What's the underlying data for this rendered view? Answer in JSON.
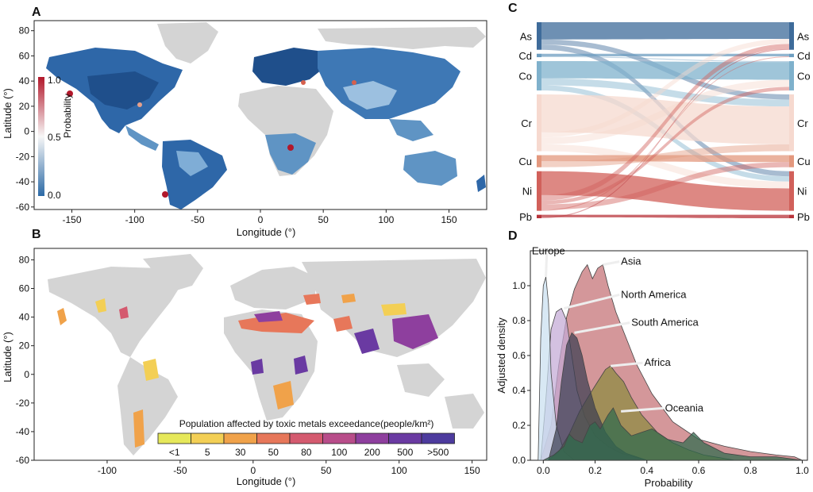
{
  "chart_data": [
    {
      "panel": "A",
      "type": "heatmap",
      "xlabel": "Longitude (°)",
      "ylabel": "Latitude (°)",
      "xticks": [
        "-150",
        "-100",
        "-50",
        "0",
        "50",
        "100",
        "150"
      ],
      "xtick_values": [
        -150,
        -100,
        -50,
        0,
        50,
        100,
        150
      ],
      "yticks": [
        "80",
        "60",
        "40",
        "20",
        "0",
        "-20",
        "-40",
        "-60"
      ],
      "ytick_values": [
        80,
        60,
        40,
        20,
        0,
        -20,
        -40,
        -60
      ],
      "xlim": [
        -180,
        180
      ],
      "ylim": [
        -62,
        88
      ],
      "colorbar": {
        "label": "Probability",
        "min_label": "0.0",
        "mid_label": "0.5",
        "max_label": "1.0",
        "colors": [
          "#2c6aa6",
          "#f7f7f7",
          "#b2182b"
        ]
      }
    },
    {
      "panel": "B",
      "type": "heatmap",
      "xlabel": "Longitude (°)",
      "ylabel": "Latitude (°)",
      "xticks": [
        "-100",
        "-50",
        "0",
        "50",
        "100",
        "150"
      ],
      "xtick_values": [
        -100,
        -50,
        0,
        50,
        100,
        150
      ],
      "yticks": [
        "80",
        "60",
        "40",
        "20",
        "0",
        "-20",
        "-40",
        "-60"
      ],
      "ytick_values": [
        80,
        60,
        40,
        20,
        0,
        -20,
        -40,
        -60
      ],
      "xlim": [
        -150,
        160
      ],
      "ylim": [
        -60,
        88
      ],
      "legend_title": "Population affected by toxic metals exceedance(people/km²)",
      "legend_labels": [
        "<1",
        "5",
        "30",
        "50",
        "80",
        "100",
        "200",
        "500",
        ">500"
      ],
      "legend_colors": [
        "#e6e85a",
        "#f3cf55",
        "#f0a24a",
        "#e7775a",
        "#d45a6f",
        "#b84d8a",
        "#8e3f9e",
        "#6a3aa2",
        "#4d3b9e"
      ]
    },
    {
      "panel": "C",
      "type": "sankey",
      "left_nodes": [
        "As",
        "Cd",
        "Co",
        "Cr",
        "Cu",
        "Ni",
        "Pb"
      ],
      "right_nodes": [
        "As",
        "Cd",
        "Co",
        "Cr",
        "Cu",
        "Ni",
        "Pb"
      ],
      "node_values": [
        0.16,
        0.02,
        0.17,
        0.33,
        0.07,
        0.23,
        0.02
      ],
      "node_colors": [
        "#3e6b9a",
        "#6d9ec0",
        "#7fb1cc",
        "#f6d9cf",
        "#e3987e",
        "#d1605a",
        "#b8333a"
      ],
      "flows": [
        {
          "from": "As",
          "to": "As",
          "value": 0.1
        },
        {
          "from": "As",
          "to": "Cr",
          "value": 0.03
        },
        {
          "from": "As",
          "to": "Ni",
          "value": 0.03
        },
        {
          "from": "Cd",
          "to": "Cd",
          "value": 0.015
        },
        {
          "from": "Cd",
          "to": "Co",
          "value": 0.005
        },
        {
          "from": "Co",
          "to": "Co",
          "value": 0.1
        },
        {
          "from": "Co",
          "to": "Cr",
          "value": 0.04
        },
        {
          "from": "Co",
          "to": "Ni",
          "value": 0.03
        },
        {
          "from": "Cr",
          "to": "Cr",
          "value": 0.22
        },
        {
          "from": "Cr",
          "to": "As",
          "value": 0.03
        },
        {
          "from": "Cr",
          "to": "Co",
          "value": 0.04
        },
        {
          "from": "Cr",
          "to": "Ni",
          "value": 0.04
        },
        {
          "from": "Cu",
          "to": "Cu",
          "value": 0.04
        },
        {
          "from": "Cu",
          "to": "Cr",
          "value": 0.04
        },
        {
          "from": "Ni",
          "to": "Ni",
          "value": 0.13
        },
        {
          "from": "Ni",
          "to": "As",
          "value": 0.03
        },
        {
          "from": "Ni",
          "to": "Co",
          "value": 0.02
        },
        {
          "from": "Ni",
          "to": "Cu",
          "value": 0.03
        },
        {
          "from": "Ni",
          "to": "Cd",
          "value": 0.005
        },
        {
          "from": "Pb",
          "to": "Pb",
          "value": 0.012
        },
        {
          "from": "Pb",
          "to": "As",
          "value": 0.005
        }
      ]
    },
    {
      "panel": "D",
      "type": "area",
      "xlabel": "Probability",
      "ylabel": "Adjusted density",
      "xlim": [
        -0.05,
        1.02
      ],
      "ylim": [
        0,
        1.2
      ],
      "xticks": [
        "0.0",
        "0.2",
        "0.4",
        "0.6",
        "0.8",
        "1.0"
      ],
      "xtick_values": [
        0,
        0.2,
        0.4,
        0.6,
        0.8,
        1.0
      ],
      "yticks": [
        "0.0",
        "0.2",
        "0.4",
        "0.6",
        "0.8",
        "1.0"
      ],
      "ytick_values": [
        0,
        0.2,
        0.4,
        0.6,
        0.8,
        1.0
      ],
      "series": [
        {
          "name": "Asia",
          "color": "#c46f73",
          "x": [
            -0.01,
            0.03,
            0.06,
            0.09,
            0.12,
            0.15,
            0.17,
            0.19,
            0.21,
            0.23,
            0.25,
            0.28,
            0.32,
            0.36,
            0.42,
            0.5,
            0.6,
            0.7,
            0.8,
            0.9,
            0.97,
            1.0
          ],
          "y": [
            0,
            0.2,
            0.55,
            0.82,
            0.98,
            1.08,
            1.12,
            1.04,
            1.1,
            1.12,
            1.0,
            0.85,
            0.7,
            0.55,
            0.38,
            0.22,
            0.12,
            0.08,
            0.05,
            0.03,
            0.02,
            0
          ]
        },
        {
          "name": "North America",
          "color": "#c3a9d6",
          "x": [
            -0.01,
            0.01,
            0.03,
            0.05,
            0.07,
            0.09,
            0.11,
            0.13,
            0.16,
            0.2,
            0.25,
            0.3,
            0.35,
            0.4
          ],
          "y": [
            0,
            0.35,
            0.75,
            0.85,
            0.87,
            0.8,
            0.6,
            0.4,
            0.25,
            0.14,
            0.08,
            0.04,
            0.02,
            0
          ]
        },
        {
          "name": "Europe",
          "color": "#c9dff0",
          "x": [
            -0.02,
            -0.01,
            0.0,
            0.01,
            0.02,
            0.03,
            0.05,
            0.08,
            0.12
          ],
          "y": [
            0,
            0.7,
            1.0,
            1.05,
            0.9,
            0.5,
            0.2,
            0.05,
            0
          ]
        },
        {
          "name": "Africa",
          "color": "#8c8a3e",
          "x": [
            0.02,
            0.06,
            0.1,
            0.14,
            0.18,
            0.21,
            0.24,
            0.26,
            0.28,
            0.31,
            0.34,
            0.38,
            0.44,
            0.5,
            0.56,
            0.62,
            0.68,
            0.74
          ],
          "y": [
            0,
            0.05,
            0.15,
            0.28,
            0.38,
            0.45,
            0.52,
            0.54,
            0.5,
            0.45,
            0.36,
            0.26,
            0.16,
            0.1,
            0.06,
            0.03,
            0.015,
            0
          ]
        },
        {
          "name": "South America",
          "color": "#3c3f52",
          "x": [
            0.02,
            0.05,
            0.07,
            0.09,
            0.11,
            0.13,
            0.15,
            0.17,
            0.2,
            0.24,
            0.28,
            0.32,
            0.36,
            0.4
          ],
          "y": [
            0,
            0.18,
            0.45,
            0.66,
            0.73,
            0.7,
            0.6,
            0.46,
            0.3,
            0.16,
            0.08,
            0.04,
            0.02,
            0
          ]
        },
        {
          "name": "Oceania",
          "color": "#2f6b4e",
          "x": [
            0.0,
            0.04,
            0.08,
            0.1,
            0.12,
            0.15,
            0.18,
            0.2,
            0.22,
            0.25,
            0.27,
            0.3,
            0.34,
            0.38,
            0.42,
            0.48,
            0.54,
            0.58,
            0.62,
            0.7,
            0.8,
            0.9,
            1.0
          ],
          "y": [
            0,
            0.03,
            0.08,
            0.15,
            0.12,
            0.1,
            0.2,
            0.22,
            0.18,
            0.26,
            0.3,
            0.2,
            0.14,
            0.16,
            0.18,
            0.12,
            0.1,
            0.16,
            0.1,
            0.04,
            0.02,
            0.02,
            0
          ]
        }
      ],
      "annotations": [
        "Europe",
        "Asia",
        "North America",
        "South America",
        "Africa",
        "Oceania"
      ]
    }
  ]
}
